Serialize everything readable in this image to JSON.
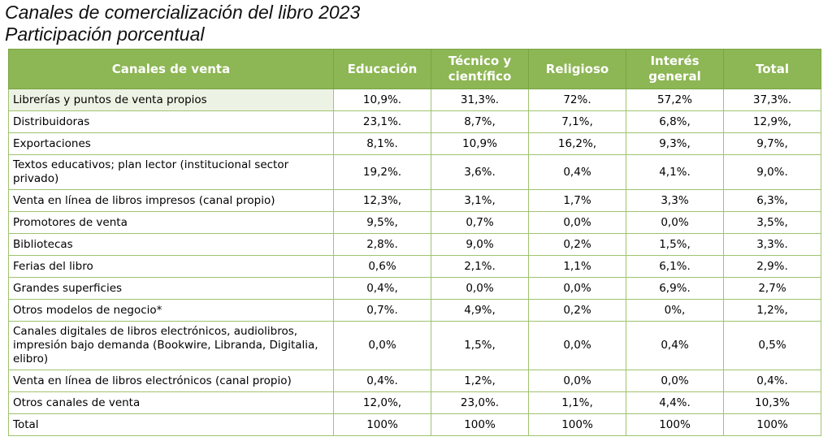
{
  "titles": {
    "line1": "Canales de comercialización del libro 2023",
    "line2": "Participación porcentual"
  },
  "chart_data": {
    "type": "table",
    "columns": [
      "Canales de venta",
      "Educación",
      "Técnico y científico",
      "Religioso",
      "Interés general",
      "Total"
    ],
    "rows": [
      {
        "label": "Librerías y puntos de venta propios",
        "values": [
          "10,9%.",
          "31,3%.",
          "72%.",
          "57,2%",
          "37,3%."
        ]
      },
      {
        "label": "Distribuidoras",
        "values": [
          "23,1%.",
          "8,7%,",
          "7,1%,",
          "6,8%,",
          "12,9%,"
        ]
      },
      {
        "label": "Exportaciones",
        "values": [
          "8,1%.",
          "10,9%",
          "16,2%,",
          "9,3%,",
          "9,7%,"
        ]
      },
      {
        "label": "Textos educativos; plan lector (institucional sector privado)",
        "values": [
          "19,2%.",
          "3,6%.",
          "0,4%",
          "4,1%.",
          "9,0%."
        ]
      },
      {
        "label": "Venta en línea de libros impresos (canal propio)",
        "values": [
          "12,3%,",
          "3,1%,",
          "1,7%",
          "3,3%",
          "6,3%,"
        ]
      },
      {
        "label": "Promotores de venta",
        "values": [
          "9,5%,",
          "0,7%",
          "0,0%",
          "0,0%",
          "3,5%,"
        ]
      },
      {
        "label": "Bibliotecas",
        "values": [
          "2,8%.",
          "9,0%",
          "0,2%",
          "1,5%,",
          "3,3%."
        ]
      },
      {
        "label": "Ferias del libro",
        "values": [
          "0,6%",
          "2,1%.",
          "1,1%",
          "6,1%.",
          "2,9%."
        ]
      },
      {
        "label": "Grandes superficies",
        "values": [
          "0,4%,",
          "0,0%",
          "0,0%",
          "6,9%.",
          "2,7%"
        ]
      },
      {
        "label": "Otros modelos de negocio*",
        "values": [
          "0,7%.",
          "4,9%,",
          "0,2%",
          "0%,",
          "1,2%,"
        ]
      },
      {
        "label": "Canales digitales de libros electrónicos, audiolibros, impresión bajo demanda (Bookwire, Libranda, Digitalia, elibro)",
        "values": [
          "0,0%",
          "1,5%,",
          "0,0%",
          "0,4%",
          "0,5%"
        ]
      },
      {
        "label": "Venta en línea de libros electrónicos (canal propio)",
        "values": [
          "0,4%.",
          "1,2%,",
          "0,0%",
          "0,0%",
          "0,4%."
        ]
      },
      {
        "label": "Otros canales de venta",
        "values": [
          "12,0%,",
          "23,0%.",
          "1,1%,",
          "4,4%.",
          "10,3%"
        ]
      },
      {
        "label": "Total",
        "values": [
          "100%",
          "100%",
          "100%",
          "100%",
          "100%"
        ]
      }
    ]
  },
  "colors": {
    "header_bg": "#8db654",
    "header_text": "#ffffff",
    "grid": "#9fc36e",
    "first_row_label_bg": "#edf3e4"
  }
}
